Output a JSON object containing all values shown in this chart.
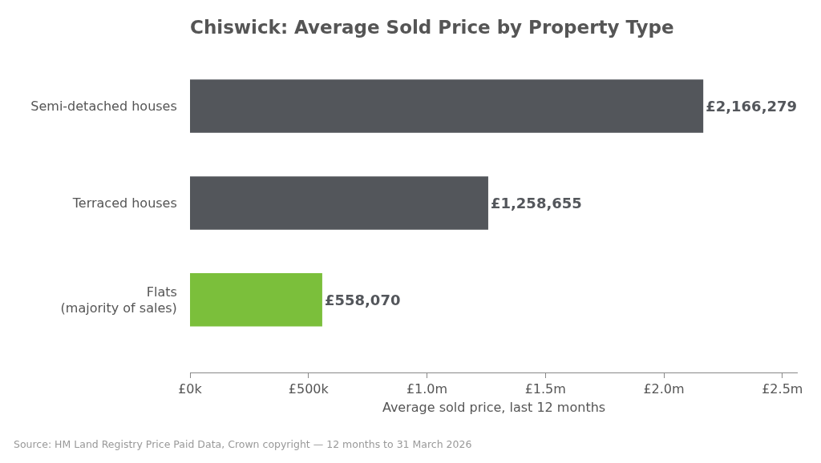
{
  "chart_data": {
    "type": "bar",
    "orientation": "horizontal",
    "title": "Chiswick: Average Sold Price by Property Type",
    "categories": [
      "Semi-detached houses",
      "Terraced houses",
      "Flats\n(majority of sales)"
    ],
    "values": [
      2166279,
      1258655,
      558070
    ],
    "colors": [
      "#53565b",
      "#53565b",
      "#7bbf3b"
    ],
    "value_labels": [
      "£2,166,279",
      "£1,258,655",
      "£558,070"
    ],
    "xlabel": "Average sold price, last 12 months",
    "xlim": [
      0,
      2565000
    ],
    "xticks": [
      {
        "value": 0,
        "label": "£0k"
      },
      {
        "value": 500000,
        "label": "£500k"
      },
      {
        "value": 1000000,
        "label": "£1.0m"
      },
      {
        "value": 1500000,
        "label": "£1.5m"
      },
      {
        "value": 2000000,
        "label": "£2.0m"
      },
      {
        "value": 2500000,
        "label": "£2.5m"
      }
    ],
    "grid": false,
    "annotations": [
      "Source: HM Land Registry Price Paid Data, Crown copyright — 12 months to 31 March 2026"
    ]
  }
}
